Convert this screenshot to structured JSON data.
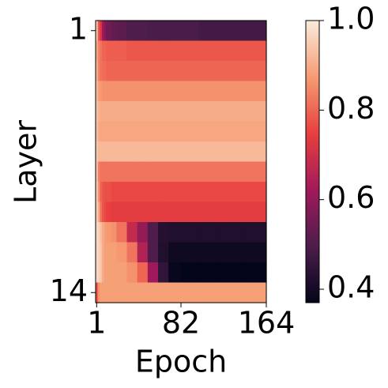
{
  "chart_data": {
    "type": "heatmap",
    "xlabel": "Epoch",
    "ylabel": "Layer",
    "xbins": [
      0,
      2,
      4,
      6,
      8,
      10,
      15,
      20,
      30,
      40,
      50,
      60,
      70,
      82,
      100,
      120,
      140,
      164
    ],
    "xlim": [
      0,
      164
    ],
    "xticks": [
      1,
      82,
      164
    ],
    "rows": [
      1,
      2,
      3,
      4,
      5,
      6,
      7,
      8,
      9,
      10,
      11,
      12,
      13,
      14
    ],
    "ylim": [
      0.5,
      14.5
    ],
    "yticks": [
      1,
      14
    ],
    "values": [
      [
        0.95,
        0.78,
        0.72,
        0.62,
        0.58,
        0.55,
        0.53,
        0.52,
        0.5,
        0.5,
        0.49,
        0.49,
        0.49,
        0.49,
        0.48,
        0.48,
        0.48
      ],
      [
        0.9,
        0.84,
        0.82,
        0.8,
        0.8,
        0.79,
        0.79,
        0.79,
        0.78,
        0.78,
        0.78,
        0.78,
        0.78,
        0.78,
        0.78,
        0.78,
        0.78
      ],
      [
        0.92,
        0.84,
        0.82,
        0.81,
        0.81,
        0.8,
        0.8,
        0.8,
        0.8,
        0.8,
        0.8,
        0.8,
        0.8,
        0.8,
        0.8,
        0.8,
        0.8
      ],
      [
        0.93,
        0.88,
        0.87,
        0.86,
        0.86,
        0.86,
        0.86,
        0.86,
        0.86,
        0.86,
        0.86,
        0.86,
        0.86,
        0.86,
        0.86,
        0.86,
        0.86
      ],
      [
        0.94,
        0.91,
        0.9,
        0.9,
        0.9,
        0.9,
        0.9,
        0.9,
        0.9,
        0.9,
        0.9,
        0.9,
        0.9,
        0.9,
        0.9,
        0.9,
        0.9
      ],
      [
        0.94,
        0.9,
        0.89,
        0.89,
        0.89,
        0.89,
        0.89,
        0.89,
        0.89,
        0.89,
        0.89,
        0.89,
        0.89,
        0.89,
        0.89,
        0.89,
        0.89
      ],
      [
        0.95,
        0.92,
        0.92,
        0.92,
        0.92,
        0.92,
        0.92,
        0.92,
        0.92,
        0.92,
        0.92,
        0.92,
        0.92,
        0.92,
        0.92,
        0.92,
        0.92
      ],
      [
        0.95,
        0.84,
        0.82,
        0.82,
        0.82,
        0.82,
        0.82,
        0.82,
        0.82,
        0.82,
        0.82,
        0.82,
        0.82,
        0.82,
        0.82,
        0.82,
        0.82
      ],
      [
        0.96,
        0.86,
        0.8,
        0.78,
        0.77,
        0.77,
        0.76,
        0.76,
        0.76,
        0.76,
        0.76,
        0.76,
        0.76,
        0.76,
        0.76,
        0.76,
        0.76
      ],
      [
        0.96,
        0.9,
        0.82,
        0.78,
        0.76,
        0.75,
        0.74,
        0.74,
        0.74,
        0.74,
        0.74,
        0.74,
        0.74,
        0.74,
        0.74,
        0.74,
        0.74
      ],
      [
        0.97,
        0.96,
        0.93,
        0.9,
        0.88,
        0.87,
        0.86,
        0.82,
        0.68,
        0.6,
        0.5,
        0.43,
        0.42,
        0.42,
        0.42,
        0.42,
        0.42
      ],
      [
        0.97,
        0.96,
        0.94,
        0.9,
        0.88,
        0.88,
        0.88,
        0.87,
        0.82,
        0.65,
        0.5,
        0.42,
        0.39,
        0.39,
        0.39,
        0.39,
        0.39
      ],
      [
        0.97,
        0.96,
        0.94,
        0.9,
        0.88,
        0.88,
        0.88,
        0.88,
        0.86,
        0.8,
        0.62,
        0.45,
        0.38,
        0.37,
        0.37,
        0.37,
        0.37
      ],
      [
        0.76,
        0.86,
        0.88,
        0.88,
        0.88,
        0.88,
        0.88,
        0.88,
        0.88,
        0.88,
        0.88,
        0.88,
        0.88,
        0.88,
        0.88,
        0.88,
        0.88
      ]
    ],
    "clim": [
      0.37,
      1.0
    ],
    "cticks": [
      {
        "value": 0.4,
        "label": "0.4"
      },
      {
        "value": 0.6,
        "label": "0.6"
      },
      {
        "value": 0.8,
        "label": "0.8"
      },
      {
        "value": 1.0,
        "label": "1.0"
      }
    ],
    "colormap": [
      "#03051a",
      "#4c1d4b",
      "#a11a5b",
      "#e83f3f",
      "#f69c73",
      "#faebdd"
    ]
  }
}
